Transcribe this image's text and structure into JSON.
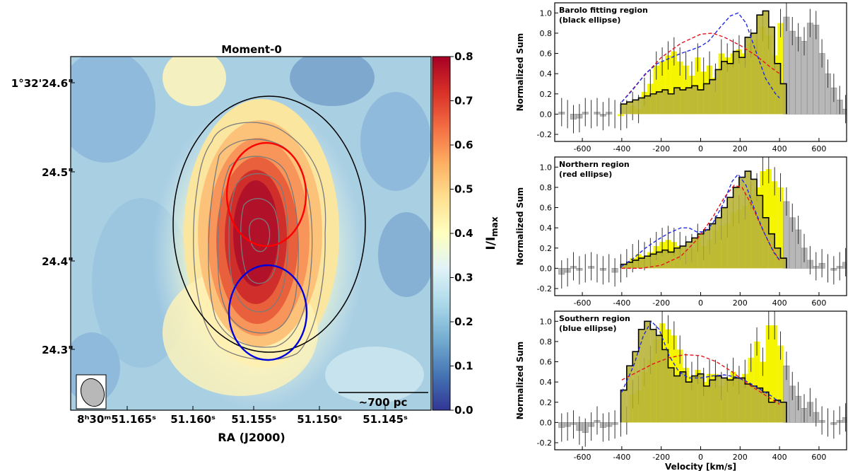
{
  "colors": {
    "gray_fill": "#b8b8b8",
    "yellow_fill": "#f5f500",
    "olive_fill": "#b8b43a",
    "blue_fit": "#1f2ae6",
    "red_fit": "#e6141e",
    "ellipse_black": "#000000",
    "ellipse_red": "#ff0000",
    "ellipse_blue": "#0000dd",
    "contour": "#7a7a7a"
  },
  "moment_map": {
    "title": "Moment-0",
    "x_axis_label": "RA (J2000)",
    "x_tick_labels": [
      "8ʰ30ᵐ51.165ˢ",
      "51.160ˢ",
      "51.155ˢ",
      "51.150ˢ",
      "51.145ˢ"
    ],
    "y_tick_labels": [
      "1°32'24.6\"",
      "24.5\"",
      "24.4\"",
      "24.3\""
    ],
    "colorbar_label": "I/I",
    "colorbar_label_sub": "max",
    "colorbar_ticks": [
      "0.0",
      "0.1",
      "0.2",
      "0.3",
      "0.4",
      "0.5",
      "0.6",
      "0.7",
      "0.8"
    ],
    "colormap": "RdYlBu_r",
    "scalebar_label": "~700 pc",
    "beam_icon": "beam-ellipse-icon"
  },
  "chart_data": [
    {
      "type": "area",
      "panel": "Barolo fitting region",
      "title": "Barolo fitting region",
      "subtitle": "(black ellipse)",
      "xlabel": "",
      "ylabel": "Normalized Sum",
      "xlim": [
        -740,
        740
      ],
      "ylim": [
        -0.27,
        1.1
      ],
      "xticks": [
        -600,
        -400,
        -200,
        0,
        200,
        400,
        600
      ],
      "yticks": [
        -0.2,
        0.0,
        0.2,
        0.4,
        0.6,
        0.8,
        1.0
      ],
      "bin_width": 30,
      "bin_start": -720,
      "spectrum_values": [
        0.02,
        0.0,
        -0.05,
        -0.04,
        0.02,
        0.0,
        0.02,
        -0.02,
        0.02,
        0.0,
        -0.02,
        0.0,
        0.08,
        0.05,
        0.22,
        0.3,
        0.48,
        0.52,
        0.58,
        0.62,
        0.52,
        0.48,
        0.38,
        0.56,
        0.42,
        0.48,
        0.36,
        0.6,
        0.56,
        0.6,
        0.64,
        0.6,
        0.7,
        0.74,
        0.86,
        0.78,
        0.58,
        0.9,
        0.96,
        0.82,
        0.76,
        0.72,
        0.9,
        0.88,
        0.6,
        0.4,
        0.26,
        0.14,
        0.05,
        0.02,
        0.0,
        -0.02,
        -0.05,
        0.02,
        0.0,
        0.02,
        -0.05,
        -0.06,
        0.05,
        -0.12
      ],
      "weak_values": [
        0.1,
        0.12,
        0.14,
        0.16,
        0.18,
        0.2,
        0.22,
        0.24,
        0.2,
        0.26,
        0.24,
        0.26,
        0.28,
        0.24,
        0.3,
        0.34,
        0.44,
        0.52,
        0.5,
        0.62,
        0.56,
        0.76,
        0.8,
        0.98,
        1.02,
        0.86,
        0.5,
        0.3
      ],
      "weak_start": -405,
      "fit_blue": [
        [
          -400,
          0.12
        ],
        [
          -340,
          0.25
        ],
        [
          -280,
          0.4
        ],
        [
          -220,
          0.5
        ],
        [
          -160,
          0.55
        ],
        [
          -100,
          0.6
        ],
        [
          -40,
          0.64
        ],
        [
          0,
          0.67
        ],
        [
          40,
          0.72
        ],
        [
          100,
          0.86
        ],
        [
          150,
          0.97
        ],
        [
          190,
          1.0
        ],
        [
          230,
          0.9
        ],
        [
          280,
          0.62
        ],
        [
          330,
          0.35
        ],
        [
          380,
          0.2
        ],
        [
          400,
          0.16
        ]
      ],
      "fit_red": [
        [
          -400,
          0.12
        ],
        [
          -300,
          0.35
        ],
        [
          -200,
          0.56
        ],
        [
          -100,
          0.7
        ],
        [
          0,
          0.79
        ],
        [
          60,
          0.8
        ],
        [
          120,
          0.76
        ],
        [
          200,
          0.68
        ],
        [
          280,
          0.58
        ],
        [
          350,
          0.47
        ],
        [
          400,
          0.4
        ]
      ]
    },
    {
      "type": "area",
      "panel": "Northern region",
      "title": "Northern region",
      "subtitle": "(red ellipse)",
      "xlabel": "",
      "ylabel": "Normalized Sum",
      "xlim": [
        -740,
        740
      ],
      "ylim": [
        -0.27,
        1.1
      ],
      "xticks": [
        -600,
        -400,
        -200,
        0,
        200,
        400,
        600
      ],
      "yticks": [
        -0.2,
        0.0,
        0.2,
        0.4,
        0.6,
        0.8,
        1.0
      ],
      "bin_width": 30,
      "bin_start": -720,
      "spectrum_values": [
        -0.06,
        -0.04,
        0.02,
        -0.02,
        0.0,
        0.02,
        0.0,
        -0.02,
        0.0,
        -0.04,
        0.0,
        0.05,
        0.1,
        0.14,
        0.12,
        0.16,
        0.22,
        0.26,
        0.28,
        0.26,
        0.22,
        0.18,
        0.2,
        0.3,
        0.22,
        0.28,
        0.38,
        0.42,
        0.44,
        0.55,
        0.58,
        0.62,
        0.72,
        0.8,
        0.96,
        0.98,
        0.86,
        0.8,
        0.66,
        0.5,
        0.38,
        0.2,
        0.08,
        0.02,
        0.05,
        0.0,
        -0.02,
        0.02,
        0.06,
        0.0,
        -0.04,
        -0.06,
        0.0,
        0.02,
        -0.02,
        -0.05,
        -0.08,
        -0.1,
        0.02,
        -0.08
      ],
      "weak_values": [
        0.04,
        0.06,
        0.08,
        0.1,
        0.12,
        0.14,
        0.16,
        0.18,
        0.16,
        0.2,
        0.22,
        0.26,
        0.3,
        0.34,
        0.38,
        0.44,
        0.5,
        0.6,
        0.7,
        0.8,
        0.9,
        0.96,
        0.88,
        0.72,
        0.5,
        0.34,
        0.2,
        0.1
      ],
      "weak_start": -405,
      "fit_blue": [
        [
          -400,
          0.02
        ],
        [
          -340,
          0.1
        ],
        [
          -280,
          0.2
        ],
        [
          -220,
          0.28
        ],
        [
          -160,
          0.35
        ],
        [
          -100,
          0.4
        ],
        [
          -60,
          0.4
        ],
        [
          -20,
          0.36
        ],
        [
          20,
          0.36
        ],
        [
          60,
          0.44
        ],
        [
          110,
          0.62
        ],
        [
          160,
          0.86
        ],
        [
          190,
          0.93
        ],
        [
          230,
          0.82
        ],
        [
          270,
          0.6
        ],
        [
          320,
          0.36
        ],
        [
          370,
          0.16
        ],
        [
          400,
          0.08
        ]
      ],
      "fit_red": [
        [
          -400,
          0.0
        ],
        [
          -300,
          0.0
        ],
        [
          -200,
          0.03
        ],
        [
          -100,
          0.12
        ],
        [
          -20,
          0.28
        ],
        [
          60,
          0.5
        ],
        [
          120,
          0.7
        ],
        [
          170,
          0.82
        ],
        [
          210,
          0.8
        ],
        [
          260,
          0.62
        ],
        [
          310,
          0.4
        ],
        [
          360,
          0.2
        ],
        [
          400,
          0.08
        ]
      ]
    },
    {
      "type": "area",
      "panel": "Southern region",
      "title": "Southern region",
      "subtitle": "(blue ellipse)",
      "xlabel": "Velocity [km/s]",
      "ylabel": "Normalized Sum",
      "xlim": [
        -740,
        740
      ],
      "ylim": [
        -0.27,
        1.1
      ],
      "xticks": [
        -600,
        -400,
        -200,
        0,
        200,
        400,
        600
      ],
      "yticks": [
        -0.2,
        0.0,
        0.2,
        0.4,
        0.6,
        0.8,
        1.0
      ],
      "bin_width": 30,
      "bin_start": -720,
      "spectrum_values": [
        -0.05,
        -0.04,
        -0.02,
        -0.08,
        -0.1,
        -0.04,
        0.02,
        -0.05,
        -0.04,
        -0.02,
        0.0,
        0.02,
        0.28,
        0.32,
        0.5,
        0.62,
        0.82,
        0.98,
        0.92,
        0.86,
        0.72,
        0.54,
        0.46,
        0.52,
        0.4,
        0.48,
        0.48,
        0.36,
        0.44,
        0.5,
        0.42,
        0.48,
        0.64,
        0.8,
        0.6,
        0.96,
        0.96,
        0.76,
        0.56,
        0.36,
        0.26,
        0.14,
        0.2,
        0.1,
        0.02,
        0.0,
        -0.02,
        0.02,
        0.05,
        -0.02,
        0.0,
        -0.06,
        0.02,
        -0.04,
        0.0,
        -0.02,
        -0.06,
        -0.04,
        0.02,
        -0.12
      ],
      "weak_values": [
        0.32,
        0.56,
        0.7,
        0.92,
        1.0,
        0.92,
        0.86,
        0.72,
        0.54,
        0.46,
        0.5,
        0.4,
        0.46,
        0.48,
        0.36,
        0.42,
        0.46,
        0.44,
        0.42,
        0.44,
        0.44,
        0.38,
        0.36,
        0.34,
        0.3,
        0.2,
        0.22,
        0.2
      ],
      "weak_start": -405,
      "fit_blue": [
        [
          -400,
          0.3
        ],
        [
          -340,
          0.56
        ],
        [
          -290,
          0.86
        ],
        [
          -250,
          1.0
        ],
        [
          -210,
          0.92
        ],
        [
          -160,
          0.66
        ],
        [
          -110,
          0.5
        ],
        [
          -60,
          0.44
        ],
        [
          0,
          0.44
        ],
        [
          60,
          0.46
        ],
        [
          120,
          0.47
        ],
        [
          180,
          0.45
        ],
        [
          240,
          0.4
        ],
        [
          300,
          0.33
        ],
        [
          360,
          0.26
        ],
        [
          400,
          0.2
        ]
      ],
      "fit_red": [
        [
          -400,
          0.42
        ],
        [
          -320,
          0.5
        ],
        [
          -240,
          0.58
        ],
        [
          -160,
          0.64
        ],
        [
          -80,
          0.67
        ],
        [
          0,
          0.66
        ],
        [
          80,
          0.6
        ],
        [
          160,
          0.5
        ],
        [
          240,
          0.38
        ],
        [
          320,
          0.28
        ],
        [
          400,
          0.18
        ]
      ]
    }
  ]
}
